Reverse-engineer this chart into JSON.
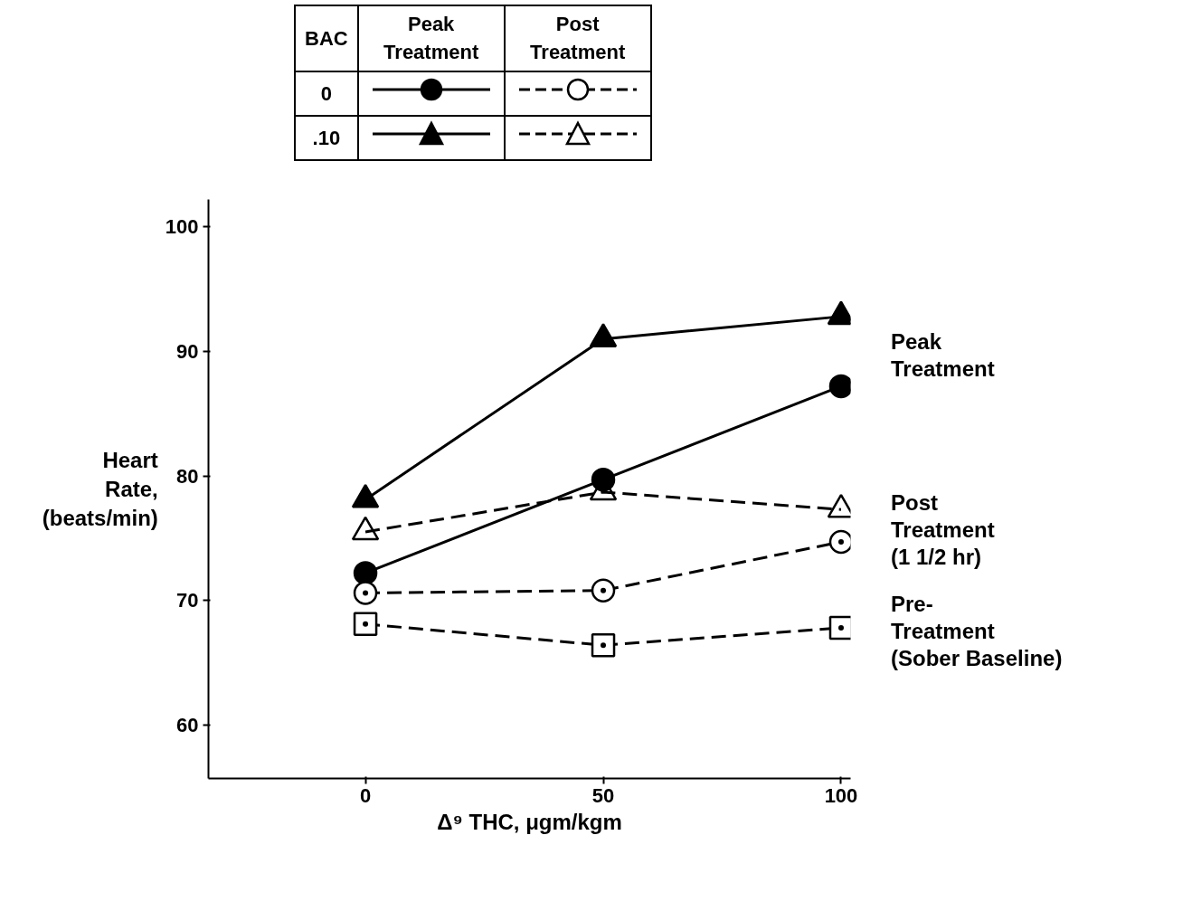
{
  "chart_data": {
    "type": "line",
    "xlabel": "Δ⁹ THC, μgm/kgm",
    "ylabel": "Heart\nRate,\n(beats/min)",
    "x": [
      0,
      50,
      100
    ],
    "xlim": [
      -33,
      102
    ],
    "ylim": [
      55.7,
      102.2
    ],
    "xticks": [
      0,
      50,
      100
    ],
    "yticks": [
      60,
      70,
      80,
      90,
      100
    ],
    "grid": false,
    "series": [
      {
        "color": "#000000",
        "marker": "circle",
        "line_style": "solid",
        "values": [
          72.2,
          79.7,
          87.2
        ]
      },
      {
        "color": "#000000",
        "marker": "triangle",
        "line_style": "solid",
        "values": [
          78.1,
          91.0,
          92.8
        ]
      },
      {
        "color": "#000000",
        "marker": "circle",
        "line_style": "dashed",
        "values": [
          70.6,
          70.8,
          74.7
        ]
      },
      {
        "color": "#000000",
        "marker": "triangle",
        "line_style": "dashed",
        "values": [
          75.5,
          78.7,
          77.3
        ]
      },
      {
        "color": "#000000",
        "marker": "square",
        "line_style": "dashed",
        "values": [
          68.1,
          66.4,
          67.8
        ]
      }
    ],
    "annotations": [
      "BAC",
      "Peak\nTreatment",
      "Post\nTreatment",
      "0",
      ".10",
      "Peak\nTreatment",
      "Post\nTreatment\n(1 1/2 hr)",
      "Pre-\nTreatment\n(Sober Baseline)"
    ]
  }
}
